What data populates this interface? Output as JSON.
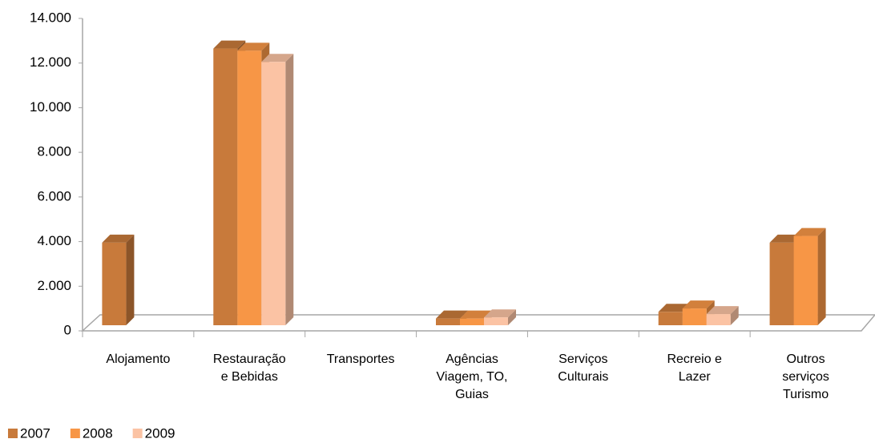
{
  "chart_data": {
    "type": "bar3d",
    "categories": [
      "Alojamento",
      "Restauração e Bebidas",
      "Transportes",
      "Agências Viagem, TO, Guias",
      "Serviços Culturais",
      "Recreio e Lazer",
      "Outros serviços Turismo"
    ],
    "series": [
      {
        "name": "2007",
        "color": "#c87a3b",
        "values": [
          3700,
          12400,
          null,
          300,
          null,
          600,
          3700
        ]
      },
      {
        "name": "2008",
        "color": "#f79646",
        "values": [
          null,
          12300,
          null,
          300,
          null,
          750,
          4000
        ]
      },
      {
        "name": "2009",
        "color": "#fbc3a4",
        "values": [
          null,
          11800,
          null,
          350,
          null,
          500,
          null
        ]
      }
    ],
    "ylim": [
      0,
      14000
    ],
    "yticks": [
      0,
      {
        "value": 2000,
        "label": "2.000"
      },
      {
        "value": 4000,
        "label": "4.000"
      },
      {
        "value": 6000,
        "label": "6.000"
      },
      {
        "value": 8000,
        "label": "8.000"
      },
      {
        "value": 10000,
        "label": "10.000"
      },
      {
        "value": 12000,
        "label": "12.000"
      },
      {
        "value": 14000,
        "label": "14.000"
      }
    ],
    "legend": "bottom-left"
  }
}
